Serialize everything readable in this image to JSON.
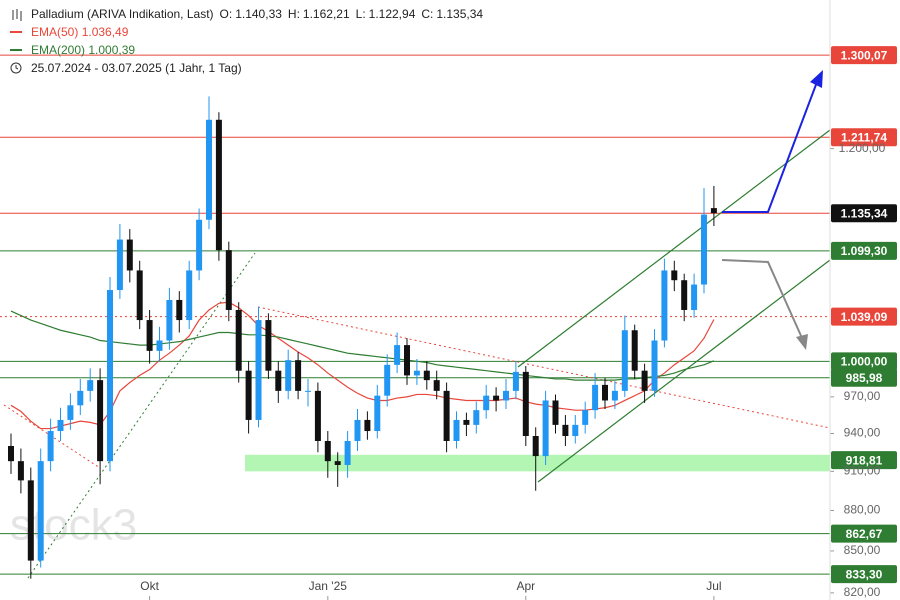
{
  "chart_data": {
    "type": "candlestick",
    "title": "Palladium (ARIVA Indikation, Last)",
    "ohlc_labels": [
      {
        "key": "O:",
        "label": "1.140,33"
      },
      {
        "key": "H:",
        "label": "1.162,21"
      },
      {
        "key": "L:",
        "label": "1.122,94"
      },
      {
        "key": "C:",
        "label": "1.135,34"
      }
    ],
    "date_range": "25.07.2024 - 03.07.2025",
    "period": "(1 Jahr, 1 Tag)",
    "watermark": "stock3",
    "log_scale": true,
    "grid": false,
    "up_color": "#2196f3",
    "down_color": "#111111",
    "ylim": [
      815,
      1363
    ],
    "yticks": [
      {
        "value": 1200,
        "label": "1.200,00"
      },
      {
        "value": 970,
        "label": "970,00"
      },
      {
        "value": 940,
        "label": "940,00"
      },
      {
        "value": 910,
        "label": "910,00"
      },
      {
        "value": 880,
        "label": "880,00"
      },
      {
        "value": 850,
        "label": "850,00"
      },
      {
        "value": 820,
        "label": "820,00"
      }
    ],
    "categories": [
      null,
      null,
      null,
      null,
      null,
      null,
      null,
      null,
      null,
      null,
      null,
      null,
      null,
      null,
      "Okt",
      null,
      null,
      null,
      null,
      null,
      null,
      null,
      null,
      null,
      null,
      null,
      null,
      null,
      null,
      null,
      null,
      null,
      "Jan '25",
      null,
      null,
      null,
      null,
      null,
      null,
      null,
      null,
      null,
      null,
      null,
      null,
      null,
      null,
      null,
      null,
      null,
      null,
      null,
      "Apr",
      null,
      null,
      null,
      null,
      null,
      null,
      null,
      null,
      null,
      null,
      null,
      null,
      null,
      null,
      null,
      null,
      null,
      null,
      "Jul"
    ],
    "open": [
      930,
      918,
      903,
      843,
      918,
      942,
      951,
      963,
      975,
      984,
      918,
      1063,
      1110,
      1081,
      1036,
      1009,
      1018,
      1054,
      1036,
      1081,
      1129,
      1230,
      1100,
      1045,
      992,
      951,
      1036,
      992,
      975,
      1001,
      975,
      975,
      934,
      918,
      915,
      934,
      951,
      942,
      971,
      997,
      1014,
      988,
      992,
      984,
      975,
      934,
      951,
      947,
      959,
      971,
      967,
      975,
      991,
      938,
      922,
      967,
      947,
      938,
      947,
      959,
      980,
      967,
      975,
      1027,
      992,
      975,
      1018,
      1081,
      1072,
      1045,
      1068,
      1140.33
    ],
    "high": [
      940,
      928,
      913,
      928,
      952,
      961,
      973,
      985,
      994,
      994,
      1075,
      1125,
      1120,
      1090,
      1045,
      1030,
      1065,
      1062,
      1090,
      1140,
      1255,
      1238,
      1108,
      1052,
      1000,
      1048,
      1042,
      1000,
      1010,
      1008,
      985,
      982,
      942,
      925,
      942,
      960,
      958,
      980,
      1006,
      1025,
      1020,
      1002,
      1000,
      992,
      982,
      958,
      957,
      966,
      980,
      978,
      985,
      1000,
      996,
      945,
      975,
      972,
      955,
      955,
      966,
      990,
      986,
      983,
      1040,
      1032,
      998,
      1028,
      1092,
      1090,
      1078,
      1078,
      1160,
      1162.21
    ],
    "low": [
      908,
      893,
      830,
      838,
      910,
      934,
      943,
      955,
      966,
      900,
      910,
      1055,
      1070,
      1028,
      998,
      1000,
      1010,
      1025,
      1028,
      1072,
      1120,
      1090,
      1035,
      982,
      940,
      945,
      985,
      965,
      968,
      968,
      962,
      925,
      905,
      898,
      905,
      926,
      935,
      936,
      962,
      990,
      980,
      980,
      976,
      968,
      925,
      928,
      938,
      940,
      952,
      958,
      960,
      968,
      930,
      895,
      915,
      940,
      930,
      932,
      940,
      952,
      960,
      960,
      970,
      985,
      965,
      970,
      1012,
      1062,
      1035,
      1038,
      1060,
      1122.94
    ],
    "close": [
      918,
      903,
      843,
      918,
      942,
      951,
      963,
      975,
      984,
      918,
      1063,
      1110,
      1081,
      1036,
      1009,
      1018,
      1054,
      1036,
      1081,
      1129,
      1230,
      1100,
      1045,
      992,
      951,
      1036,
      992,
      975,
      1001,
      975,
      975,
      934,
      918,
      915,
      934,
      951,
      942,
      971,
      997,
      1014,
      988,
      992,
      984,
      975,
      934,
      951,
      947,
      959,
      971,
      967,
      975,
      991,
      938,
      922,
      967,
      947,
      938,
      947,
      959,
      980,
      967,
      975,
      1027,
      992,
      975,
      1018,
      1081,
      1072,
      1045,
      1068,
      1134,
      1135.34
    ],
    "series": [
      {
        "name": "EMA(50)",
        "color": "#e8463a",
        "last_label": "1.036,49",
        "values": [
          963,
          958,
          950,
          944,
          944,
          946,
          948,
          950,
          949,
          947,
          958,
          975,
          982,
          988,
          993,
          1001,
          1007,
          1014,
          1022,
          1036,
          1045,
          1051,
          1052,
          1047,
          1040,
          1031,
          1026,
          1020,
          1014,
          1008,
          1003,
          997,
          990,
          984,
          978,
          973,
          969,
          967,
          967,
          969,
          970,
          972,
          972,
          971,
          969,
          968,
          967,
          967,
          967,
          967,
          968,
          969,
          966,
          964,
          963,
          961,
          960,
          959,
          959,
          960,
          961,
          963,
          967,
          971,
          975,
          984,
          990,
          997,
          1003,
          1009,
          1020,
          1036.49
        ]
      },
      {
        "name": "EMA(200)",
        "color": "#2e7d32",
        "last_label": "1.000,39",
        "values": [
          1044,
          1040,
          1036,
          1033,
          1030,
          1027,
          1025,
          1023,
          1021,
          1018,
          1017,
          1016,
          1015,
          1014,
          1014,
          1015,
          1016,
          1017,
          1019,
          1021,
          1023,
          1025,
          1025,
          1024,
          1023,
          1023,
          1022,
          1021,
          1019,
          1017,
          1015,
          1013,
          1011,
          1009,
          1007,
          1006,
          1005,
          1004,
          1003,
          1002,
          1001,
          1000,
          999,
          997,
          996,
          995,
          994,
          993,
          992,
          991,
          990,
          989,
          988,
          987,
          986,
          985,
          985,
          984,
          984,
          984,
          984,
          984,
          985,
          985,
          986,
          987,
          988,
          990,
          993,
          995,
          997,
          1000.39
        ]
      }
    ],
    "levels": [
      {
        "value": 1300.07,
        "label": "1.300,07",
        "color": "#e8463a",
        "label_bg": "#e8463a",
        "style": "solid"
      },
      {
        "value": 1211.74,
        "label": "1.211,74",
        "color": "#e8463a",
        "label_bg": "#e8463a",
        "style": "solid"
      },
      {
        "value": 1135.34,
        "label": "1.135,34",
        "color": "#e8463a",
        "label_bg": "#111111",
        "style": "solid"
      },
      {
        "value": 1099.3,
        "label": "1.099,30",
        "color": "#2e7d32",
        "label_bg": "#2e7d32",
        "style": "solid"
      },
      {
        "value": 1039.09,
        "label": "1.039,09",
        "color": "#e8463a",
        "label_bg": "#e8463a",
        "style": "dotted"
      },
      {
        "value": 1000.0,
        "label": "1.000,00",
        "color": "#2e7d32",
        "label_bg": "#2e7d32",
        "style": "solid"
      },
      {
        "value": 985.98,
        "label": "985,98",
        "color": "#2e7d32",
        "label_bg": "#2e7d32",
        "style": "solid"
      },
      {
        "value": 918.81,
        "label": "918,81",
        "color": "#2e7d32",
        "label_bg": "#2e7d32",
        "style": "band",
        "band": [
          910,
          923
        ]
      },
      {
        "value": 862.67,
        "label": "862,67",
        "color": "#2e7d32",
        "label_bg": "#2e7d32",
        "style": "solid"
      },
      {
        "value": 833.3,
        "label": "833,30",
        "color": "#2e7d32",
        "label_bg": "#2e7d32",
        "style": "solid"
      }
    ]
  }
}
